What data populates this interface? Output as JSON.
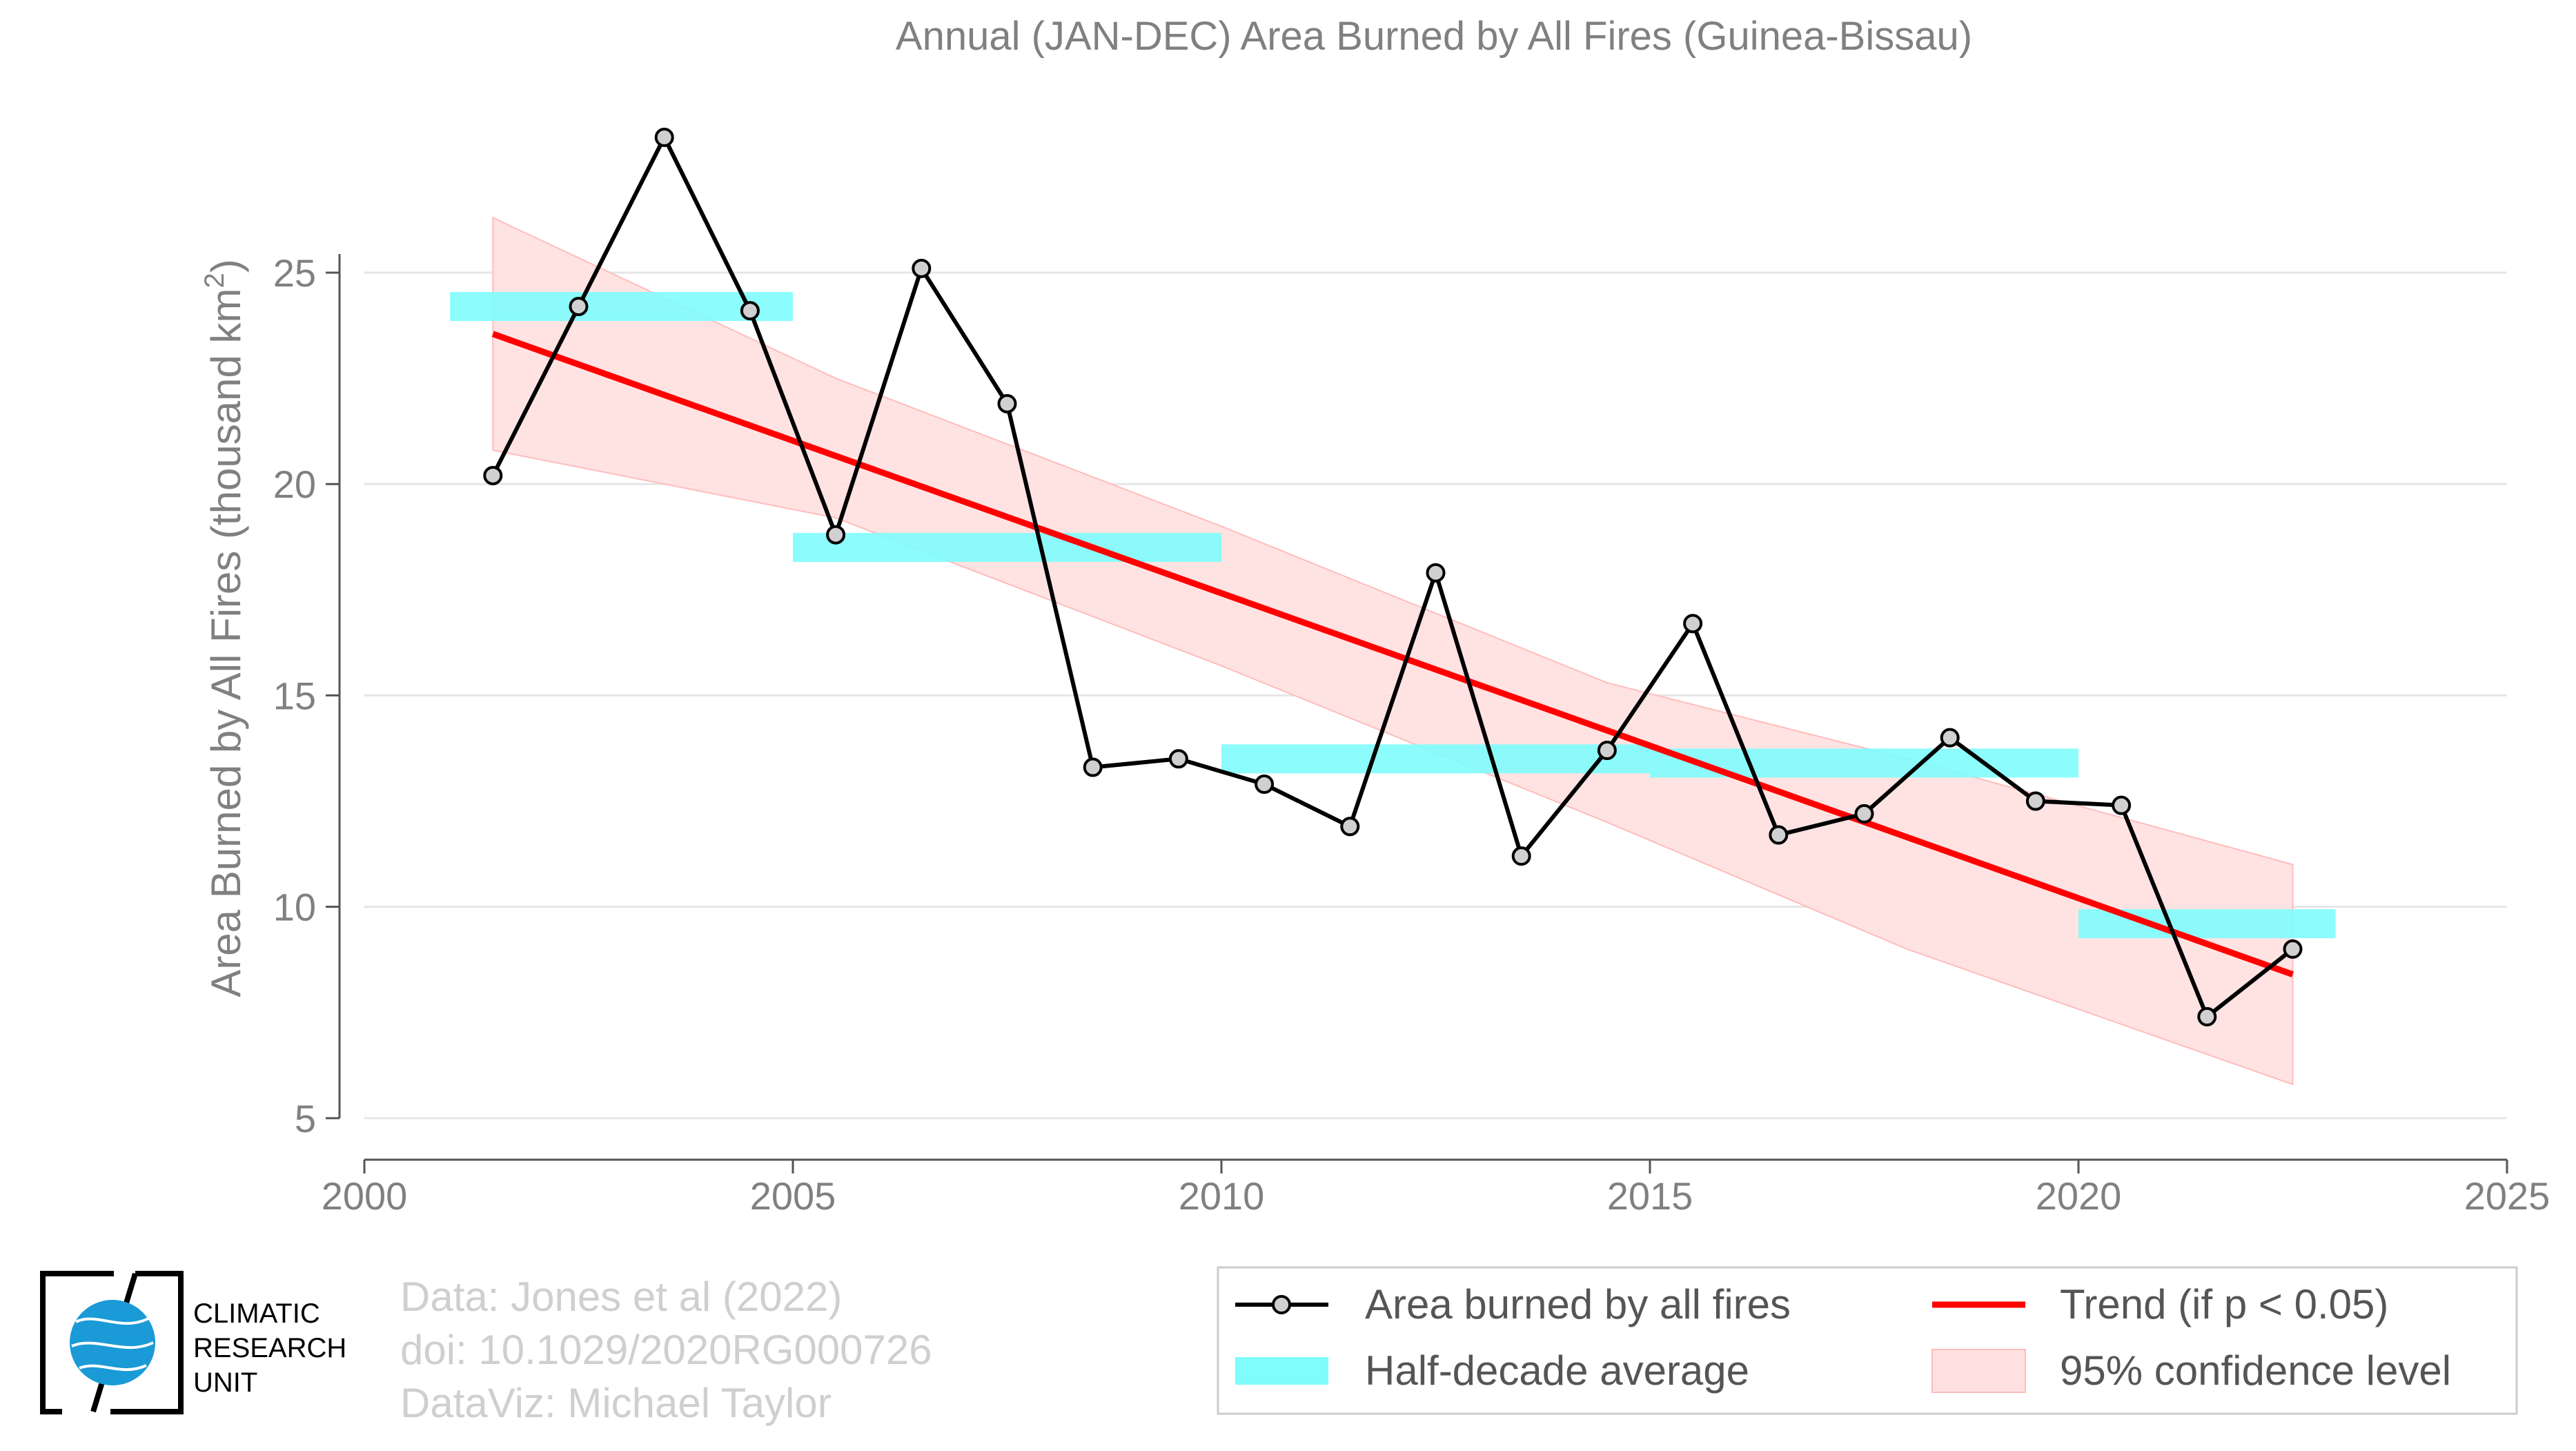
{
  "chart_data": {
    "type": "line",
    "title": "Annual (JAN-DEC) Area Burned by All Fires (Guinea-Bissau)",
    "ylabel": "Area Burned by All Fires (thousand km",
    "ylabel_sup": "2",
    "ylabel_close": ")",
    "xlabel": "",
    "xlim": [
      2000,
      2025
    ],
    "ylim": [
      4.1,
      29.0
    ],
    "xticks": [
      2000,
      2005,
      2010,
      2015,
      2020,
      2025
    ],
    "yticks": [
      5,
      10,
      15,
      20,
      25
    ],
    "grid": "horizontal",
    "series": [
      {
        "name": "Area burned by all fires",
        "color": "#000000",
        "x": [
          2001.5,
          2002.5,
          2003.5,
          2004.5,
          2005.5,
          2006.5,
          2007.5,
          2008.5,
          2009.5,
          2010.5,
          2011.5,
          2012.5,
          2013.5,
          2014.5,
          2015.5,
          2016.5,
          2017.5,
          2018.5,
          2019.5,
          2020.5,
          2021.5,
          2022.5
        ],
        "y": [
          20.2,
          24.2,
          28.2,
          24.1,
          18.8,
          25.1,
          21.9,
          13.3,
          13.5,
          12.9,
          11.9,
          17.9,
          11.2,
          13.7,
          16.7,
          11.7,
          12.2,
          14.0,
          12.5,
          12.4,
          7.4,
          9.0
        ]
      },
      {
        "name": "Half-decade average",
        "color": "#7ffcfc",
        "segments": [
          {
            "x0": 2001,
            "x1": 2005,
            "y": 24.2
          },
          {
            "x0": 2005,
            "x1": 2010,
            "y": 18.5
          },
          {
            "x0": 2010,
            "x1": 2015,
            "y": 13.5
          },
          {
            "x0": 2015,
            "x1": 2020,
            "y": 13.4
          },
          {
            "x0": 2020,
            "x1": 2023,
            "y": 9.6
          }
        ]
      },
      {
        "name": "Trend (if p < 0.05)",
        "color": "#ff0000",
        "x": [
          2001.5,
          2022.5
        ],
        "y": [
          23.55,
          8.4
        ]
      },
      {
        "name": "95% confidence level",
        "color": "#ffe0e0",
        "x": [
          2001.5,
          2005.5,
          2010.0,
          2014.5,
          2018.0,
          2022.5
        ],
        "upper": [
          26.3,
          22.5,
          19.0,
          15.3,
          13.5,
          11.0
        ],
        "lower": [
          20.8,
          19.2,
          15.7,
          12.0,
          9.0,
          5.8
        ]
      }
    ],
    "legend": {
      "position": "bottom-right",
      "items": [
        {
          "label": "Area burned by all fires",
          "kind": "line-marker"
        },
        {
          "label": "Trend (if p < 0.05)",
          "kind": "red-line"
        },
        {
          "label": "Half-decade average",
          "kind": "cyan-bar"
        },
        {
          "label": "95% confidence level",
          "kind": "pink-box"
        }
      ]
    }
  },
  "credits": {
    "line1": "Data: Jones et al (2022)",
    "line2": "doi: 10.1029/2020RG000726",
    "line3": "DataViz: Michael Taylor"
  },
  "logo": {
    "line1": "CLIMATIC",
    "line2": "RESEARCH",
    "line3": "UNIT"
  }
}
